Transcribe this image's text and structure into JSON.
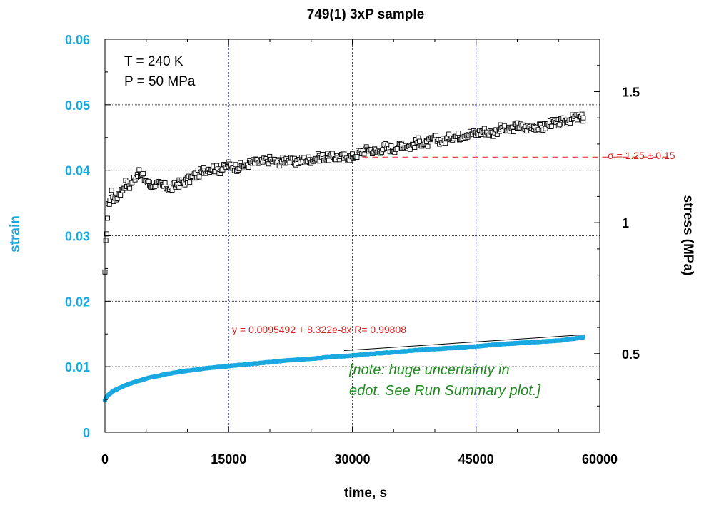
{
  "chart_data": {
    "type": "scatter",
    "title": "749(1) 3xP sample",
    "xlabel": "time, s",
    "ylabel_left": "strain",
    "ylabel_right": "stress (MPa)",
    "xlim": [
      0,
      60000
    ],
    "ylim_left": [
      0,
      0.06
    ],
    "ylim_right": [
      0.2,
      1.7
    ],
    "x_ticks": [
      "0",
      "15000",
      "30000",
      "45000",
      "60000"
    ],
    "y_left_ticks": [
      "0",
      "0.01",
      "0.02",
      "0.03",
      "0.04",
      "0.05",
      "0.06"
    ],
    "y_right_ticks": [
      "0.5",
      "1",
      "1.5"
    ],
    "grid": true,
    "colors": {
      "strain": "#1aa8e0",
      "stress": "#000000",
      "fit": "#d42020",
      "note": "#1e8a1e"
    },
    "annotations": {
      "conditions": [
        "T = 240 K",
        "P = 50 MPa"
      ],
      "sigma_label": "σ = 1.25 ± 0.15",
      "sigma_value": 1.25,
      "fit_label": "y = 0.0095492 + 8.322e-8x   R= 0.99808",
      "fit_intercept": 0.0095492,
      "fit_slope": 8.322e-08,
      "fit_range": [
        29000,
        58000
      ],
      "note": [
        "[note: huge uncertainty in",
        "edot.  See Run Summary plot.]"
      ]
    },
    "series": [
      {
        "name": "strain",
        "axis": "left",
        "marker": "filled-circle",
        "x": [
          0,
          200,
          500,
          1000,
          2000,
          3000,
          4000,
          5000,
          6000,
          8000,
          10000,
          12500,
          15000,
          17500,
          20000,
          22500,
          25000,
          27500,
          30000,
          32500,
          35000,
          37500,
          40000,
          42500,
          45000,
          47500,
          50000,
          52500,
          55000,
          57000,
          58000
        ],
        "values": [
          0.0049,
          0.0054,
          0.0058,
          0.0063,
          0.0069,
          0.0074,
          0.0078,
          0.0082,
          0.0085,
          0.009,
          0.0094,
          0.0098,
          0.0101,
          0.0104,
          0.0107,
          0.011,
          0.0112,
          0.0115,
          0.0117,
          0.012,
          0.0122,
          0.0125,
          0.0127,
          0.0129,
          0.0131,
          0.0134,
          0.0136,
          0.0138,
          0.014,
          0.0143,
          0.0145
        ]
      },
      {
        "name": "stress",
        "axis": "right",
        "marker": "open-square",
        "x": [
          0,
          100,
          200,
          300,
          400,
          600,
          800,
          1200,
          1600,
          2000,
          2500,
          3000,
          3500,
          4000,
          4500,
          5000,
          5500,
          6000,
          7000,
          8000,
          9000,
          10000,
          11000,
          12000,
          13000,
          14000,
          15000,
          16000,
          17000,
          18000,
          19000,
          20000,
          21000,
          22000,
          23000,
          24000,
          25000,
          26000,
          27000,
          28000,
          29000,
          30000,
          31000,
          32000,
          33000,
          34000,
          35000,
          36000,
          37000,
          38000,
          39000,
          40000,
          41000,
          42000,
          43000,
          44000,
          45000,
          46000,
          47000,
          48000,
          49000,
          50000,
          51000,
          52000,
          53000,
          54000,
          55000,
          56000,
          57000,
          58000
        ],
        "values": [
          0.8,
          0.92,
          0.97,
          1.02,
          1.06,
          1.09,
          1.12,
          1.08,
          1.11,
          1.12,
          1.15,
          1.14,
          1.17,
          1.19,
          1.18,
          1.16,
          1.14,
          1.15,
          1.14,
          1.13,
          1.15,
          1.16,
          1.18,
          1.2,
          1.21,
          1.2,
          1.22,
          1.21,
          1.22,
          1.23,
          1.23,
          1.24,
          1.23,
          1.24,
          1.23,
          1.24,
          1.24,
          1.25,
          1.25,
          1.25,
          1.25,
          1.25,
          1.27,
          1.28,
          1.27,
          1.29,
          1.28,
          1.3,
          1.29,
          1.31,
          1.3,
          1.32,
          1.31,
          1.33,
          1.33,
          1.34,
          1.34,
          1.35,
          1.34,
          1.36,
          1.35,
          1.37,
          1.36,
          1.37,
          1.36,
          1.38,
          1.38,
          1.39,
          1.4,
          1.4
        ]
      }
    ]
  }
}
